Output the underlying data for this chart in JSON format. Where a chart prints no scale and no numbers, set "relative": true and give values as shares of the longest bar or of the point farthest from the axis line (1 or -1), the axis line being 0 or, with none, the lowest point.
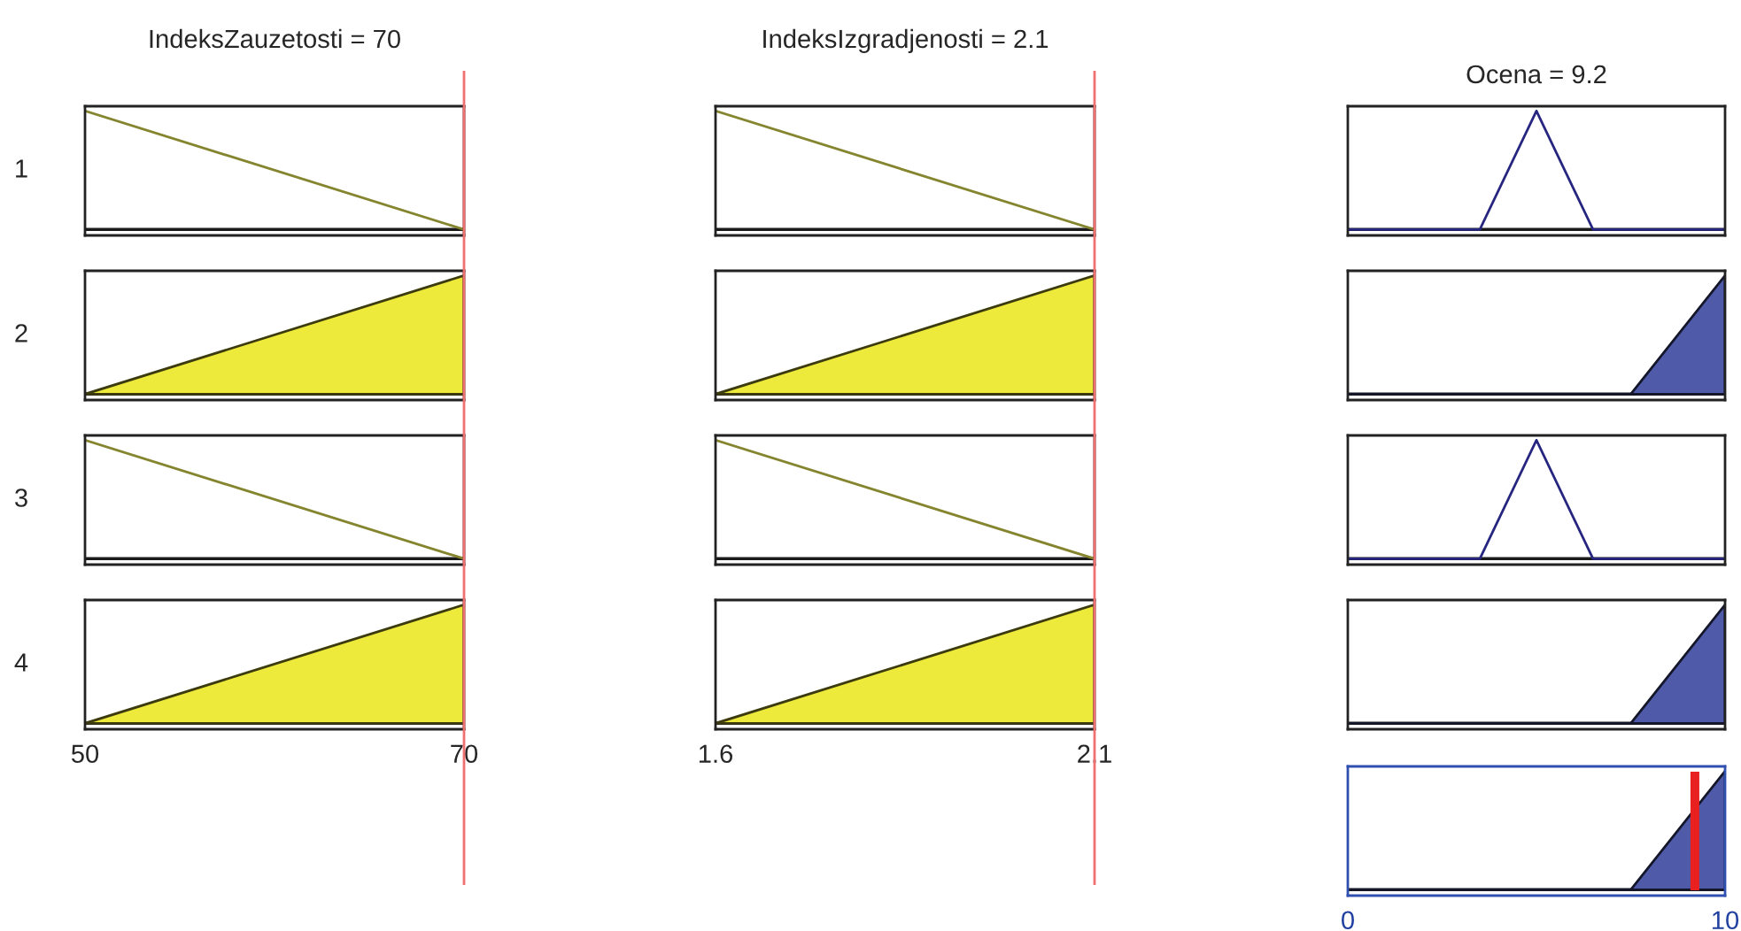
{
  "chart_data": [
    {
      "type": "line",
      "title": "IndeksZauzetosti = 70",
      "ylabel": "1",
      "relative": true,
      "series": [
        {
          "color": "#858530",
          "x": [
            50,
            70
          ],
          "values": [
            1,
            0
          ]
        }
      ],
      "xlim": [
        50,
        70
      ],
      "tick_labels": false,
      "ref_lines": [
        {
          "axis": "x",
          "value": 70,
          "color": "#f07070"
        }
      ]
    },
    {
      "type": "line",
      "title": "IndeksIzgradjenosti = 2.1",
      "relative": true,
      "series": [
        {
          "color": "#858530",
          "x": [
            1.6,
            2.1
          ],
          "values": [
            1,
            0
          ]
        }
      ],
      "xlim": [
        1.6,
        2.1
      ],
      "tick_labels": false,
      "ref_lines": [
        {
          "axis": "x",
          "value": 2.1,
          "color": "#f07070"
        }
      ]
    },
    {
      "type": "line",
      "title": "Ocena = 9.2",
      "relative": true,
      "series": [
        {
          "color": "#262680",
          "x": [
            0,
            3.5,
            5,
            6.5,
            10
          ],
          "values": [
            0,
            0,
            1,
            0,
            0
          ]
        }
      ],
      "xlim": [
        0,
        10
      ],
      "tick_labels": false
    },
    {
      "type": "area",
      "ylabel": "2",
      "relative": true,
      "series": [
        {
          "color": "#eeea3c",
          "x": [
            50,
            70
          ],
          "values": [
            0,
            1
          ]
        }
      ],
      "xlim": [
        50,
        70
      ],
      "tick_labels": false,
      "ref_lines": [
        {
          "axis": "x",
          "value": 70,
          "color": "#f07070"
        }
      ]
    },
    {
      "type": "area",
      "relative": true,
      "series": [
        {
          "color": "#eeea3c",
          "x": [
            1.6,
            2.1
          ],
          "values": [
            0,
            1
          ]
        }
      ],
      "xlim": [
        1.6,
        2.1
      ],
      "tick_labels": false,
      "ref_lines": [
        {
          "axis": "x",
          "value": 2.1,
          "color": "#f07070"
        }
      ]
    },
    {
      "type": "area",
      "relative": true,
      "series": [
        {
          "color": "#4f5aa8",
          "x": [
            0,
            7.5,
            10
          ],
          "values": [
            0,
            0,
            1
          ]
        }
      ],
      "xlim": [
        0,
        10
      ],
      "tick_labels": false
    },
    {
      "type": "line",
      "ylabel": "3",
      "relative": true,
      "series": [
        {
          "color": "#858530",
          "x": [
            50,
            70
          ],
          "values": [
            1,
            0
          ]
        }
      ],
      "xlim": [
        50,
        70
      ],
      "tick_labels": false,
      "ref_lines": [
        {
          "axis": "x",
          "value": 70,
          "color": "#f07070"
        }
      ]
    },
    {
      "type": "line",
      "relative": true,
      "series": [
        {
          "color": "#858530",
          "x": [
            1.6,
            2.1
          ],
          "values": [
            1,
            0
          ]
        }
      ],
      "xlim": [
        1.6,
        2.1
      ],
      "tick_labels": false,
      "ref_lines": [
        {
          "axis": "x",
          "value": 2.1,
          "color": "#f07070"
        }
      ]
    },
    {
      "type": "line",
      "relative": true,
      "series": [
        {
          "color": "#262680",
          "x": [
            0,
            3.5,
            5,
            6.5,
            10
          ],
          "values": [
            0,
            0,
            1,
            0,
            0
          ]
        }
      ],
      "xlim": [
        0,
        10
      ],
      "tick_labels": false
    },
    {
      "type": "area",
      "ylabel": "4",
      "relative": true,
      "series": [
        {
          "color": "#eeea3c",
          "x": [
            50,
            70
          ],
          "values": [
            0,
            1
          ]
        }
      ],
      "xlim": [
        50,
        70
      ],
      "xticks": [
        50,
        70
      ],
      "tick_labels": "x",
      "ref_lines": [
        {
          "axis": "x",
          "value": 70,
          "color": "#f07070"
        }
      ]
    },
    {
      "type": "area",
      "relative": true,
      "series": [
        {
          "color": "#eeea3c",
          "x": [
            1.6,
            2.1
          ],
          "values": [
            0,
            1
          ]
        }
      ],
      "xlim": [
        1.6,
        2.1
      ],
      "xticks": [
        1.6,
        2.1
      ],
      "tick_labels": "x",
      "ref_lines": [
        {
          "axis": "x",
          "value": 2.1,
          "color": "#f07070"
        }
      ]
    },
    {
      "type": "area",
      "relative": true,
      "series": [
        {
          "color": "#4f5aa8",
          "x": [
            0,
            7.5,
            10
          ],
          "values": [
            0,
            0,
            1
          ]
        }
      ],
      "xlim": [
        0,
        10
      ],
      "tick_labels": false
    },
    {
      "type": "area",
      "relative": true,
      "series": [
        {
          "color": "#4f5aa8",
          "x": [
            0,
            7.5,
            10
          ],
          "values": [
            0,
            0,
            1
          ]
        }
      ],
      "xlim": [
        0,
        10
      ],
      "xticks": [
        0,
        10
      ],
      "tick_labels": "x",
      "ref_lines": [
        {
          "axis": "x",
          "value": 9.2,
          "color": "#e82020"
        }
      ]
    }
  ]
}
